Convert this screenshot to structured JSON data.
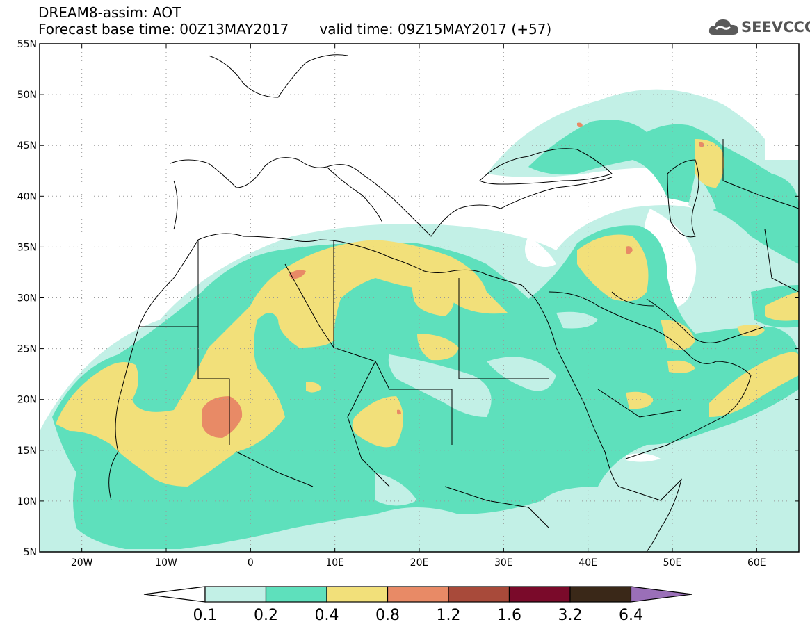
{
  "title": {
    "line1": "DREAM8-assim: AOT",
    "base_label": "Forecast base time: 00Z13MAY2017",
    "valid_label": "valid time: 09Z15MAY2017 (+57)"
  },
  "logo": {
    "text": "SEEVCCC",
    "icon": "cloud-icon"
  },
  "map": {
    "lon_range": [
      -25,
      65
    ],
    "lat_range": [
      5,
      55
    ],
    "lat_ticks": [
      {
        "value": 55,
        "label": "55N"
      },
      {
        "value": 50,
        "label": "50N"
      },
      {
        "value": 45,
        "label": "45N"
      },
      {
        "value": 40,
        "label": "40N"
      },
      {
        "value": 35,
        "label": "35N"
      },
      {
        "value": 30,
        "label": "30N"
      },
      {
        "value": 25,
        "label": "25N"
      },
      {
        "value": 20,
        "label": "20N"
      },
      {
        "value": 15,
        "label": "15N"
      },
      {
        "value": 10,
        "label": "10N"
      },
      {
        "value": 5,
        "label": "5N"
      }
    ],
    "lon_ticks": [
      {
        "value": -20,
        "label": "20W"
      },
      {
        "value": -10,
        "label": "10W"
      },
      {
        "value": 0,
        "label": "0"
      },
      {
        "value": 10,
        "label": "10E"
      },
      {
        "value": 20,
        "label": "20E"
      },
      {
        "value": 30,
        "label": "30E"
      },
      {
        "value": 40,
        "label": "40E"
      },
      {
        "value": 50,
        "label": "50E"
      },
      {
        "value": 60,
        "label": "60E"
      }
    ],
    "grid": true,
    "colors": {
      "0.1-0.2": "#c2f0e6",
      "0.2-0.4": "#5ee0bc",
      "0.4-0.8": "#f2e07a",
      "0.8-1.2": "#e88a66",
      "coast": "#000000"
    }
  },
  "colorbar": {
    "levels": [
      "0.1",
      "0.2",
      "0.4",
      "0.8",
      "1.2",
      "1.6",
      "3.2",
      "6.4"
    ],
    "colors": [
      "#c2f0e6",
      "#5ee0bc",
      "#f2e07a",
      "#e88a66",
      "#a84a3a",
      "#7a0a2a",
      "#3a2818"
    ],
    "under_color": "#ffffff",
    "over_color": "#9a6fb8"
  }
}
